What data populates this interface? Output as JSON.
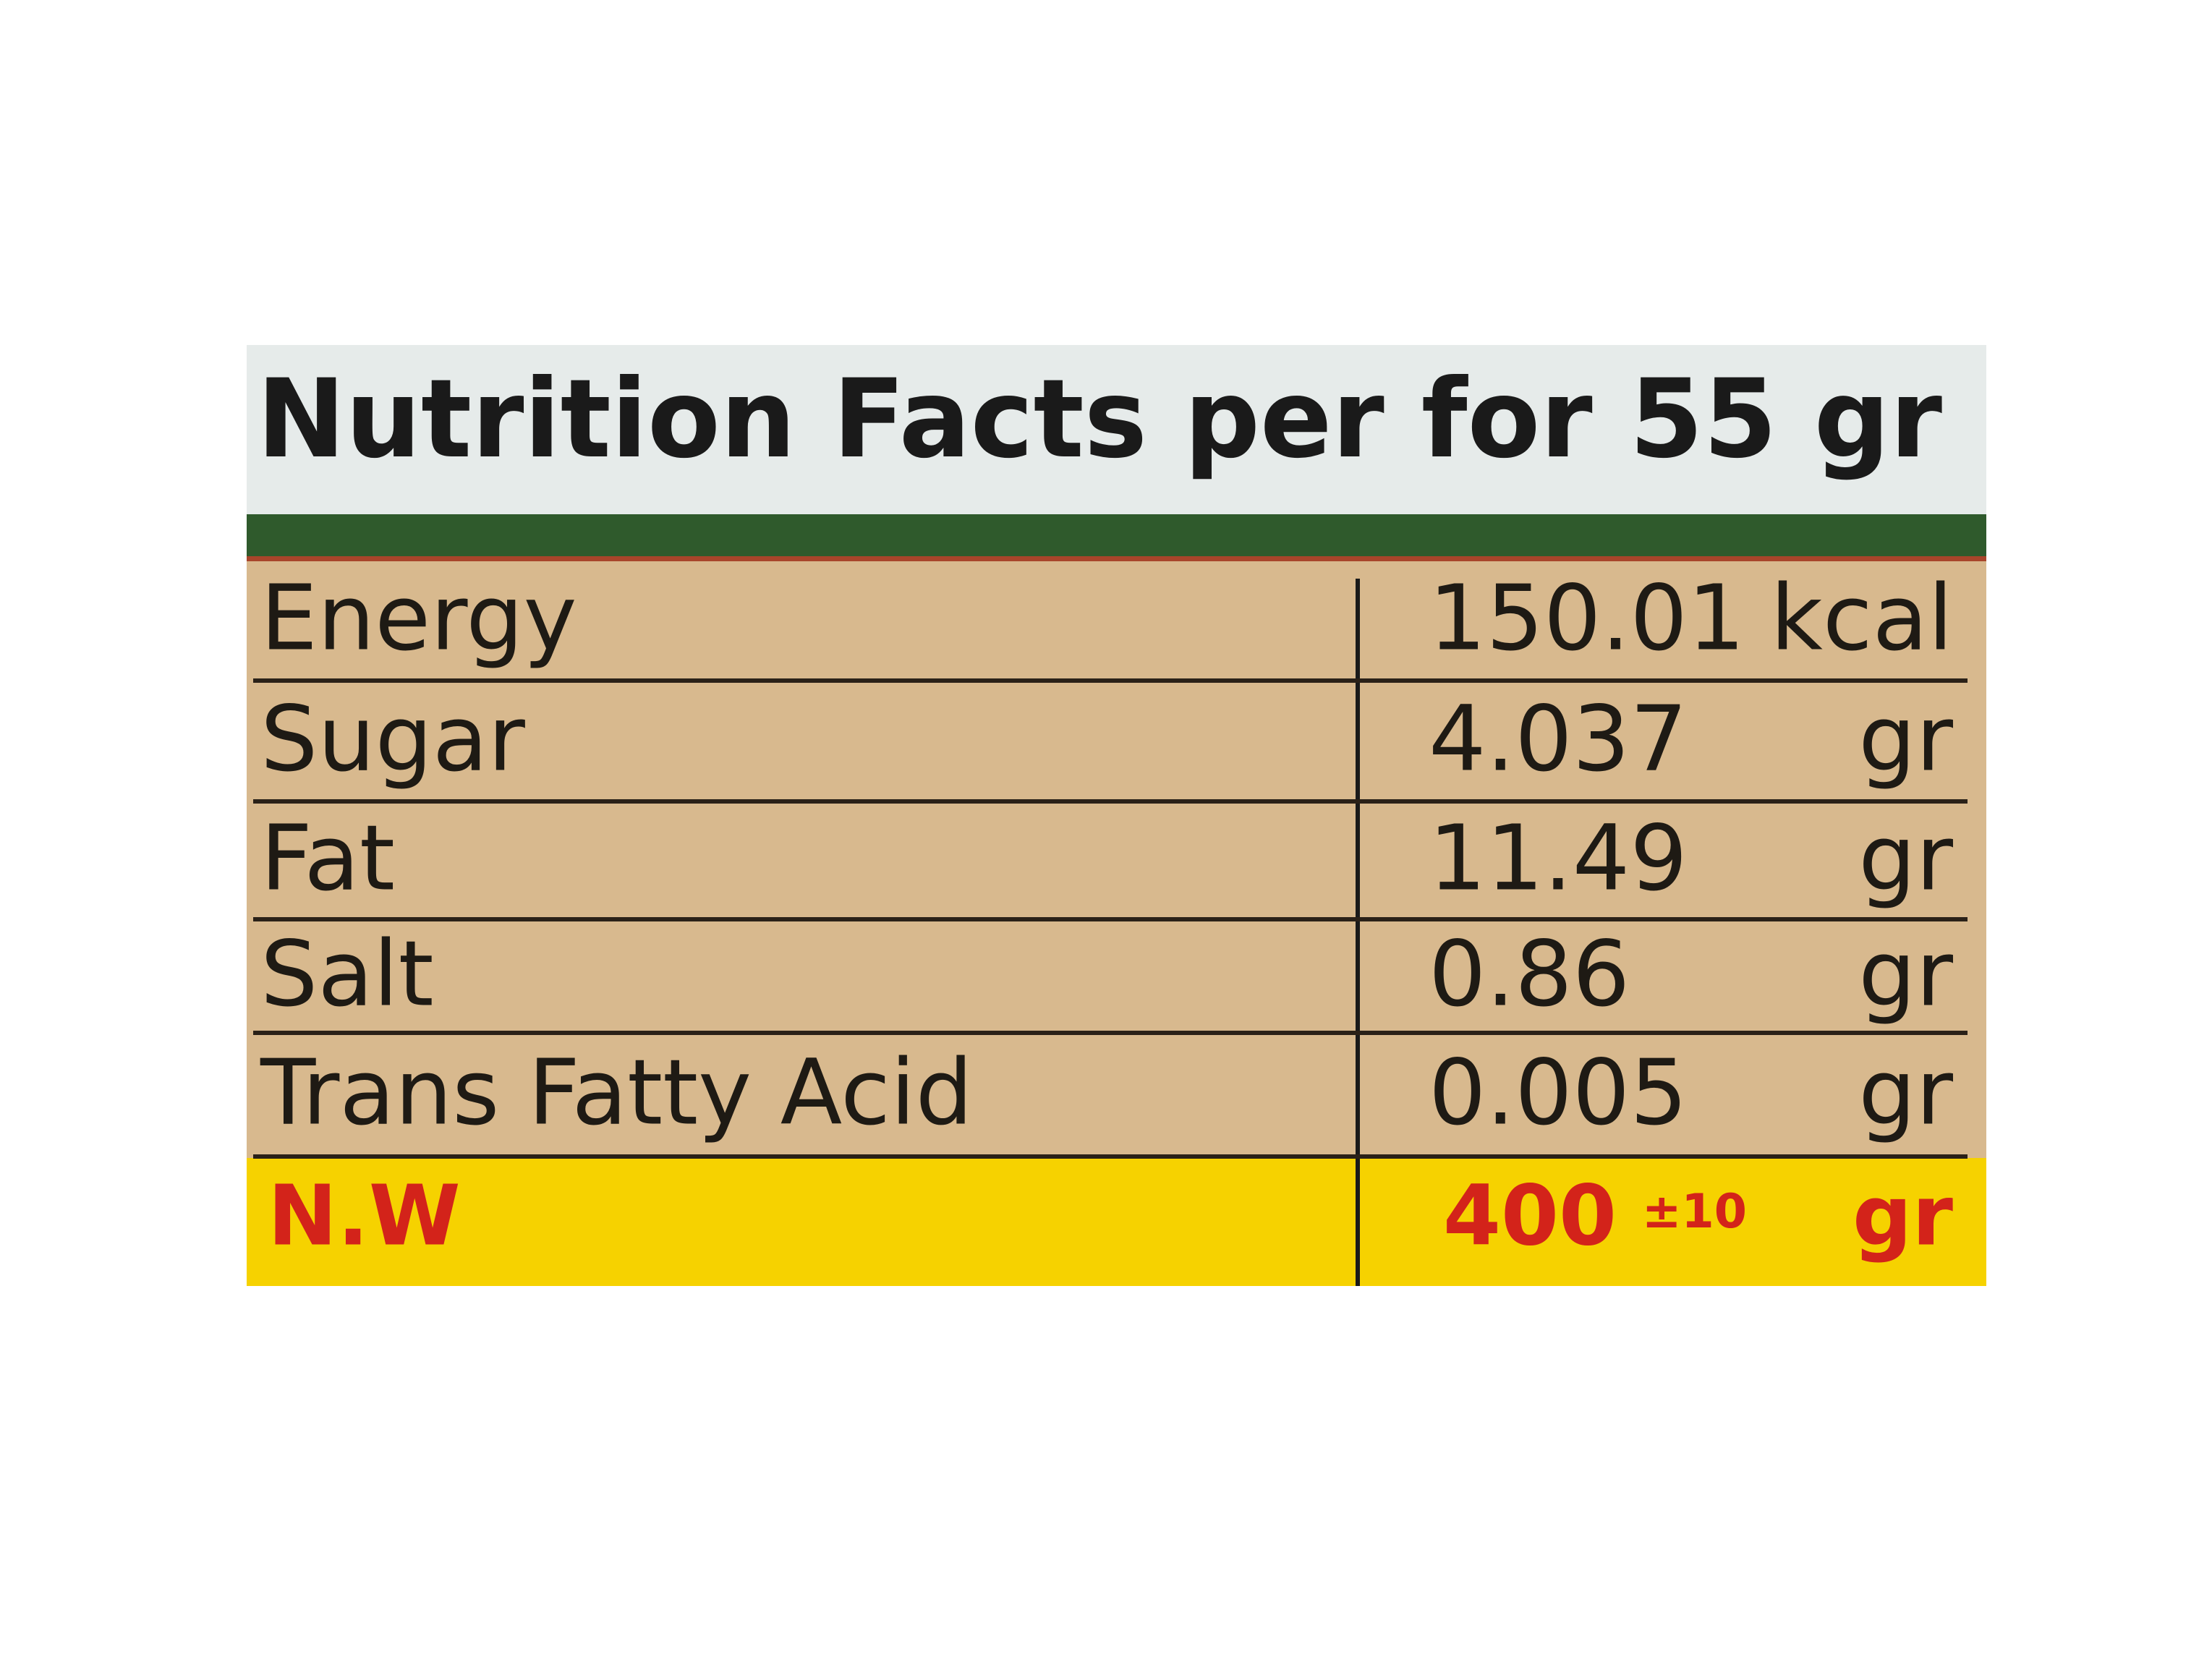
{
  "title": "Nutrition Facts per for 55 gr",
  "rows": [
    {
      "name": "Energy",
      "value": "150.01",
      "unit": "kcal"
    },
    {
      "name": "Sugar",
      "value": "4.037",
      "unit": "gr"
    },
    {
      "name": "Fat",
      "value": "11.49",
      "unit": "gr"
    },
    {
      "name": "Salt",
      "value": "0.86",
      "unit": "gr"
    },
    {
      "name": "Trans Fatty Acid",
      "value": "0.005",
      "unit": "gr"
    }
  ],
  "net_weight": {
    "name": "N.W",
    "value": "400",
    "tolerance": "±10",
    "unit": "gr"
  }
}
